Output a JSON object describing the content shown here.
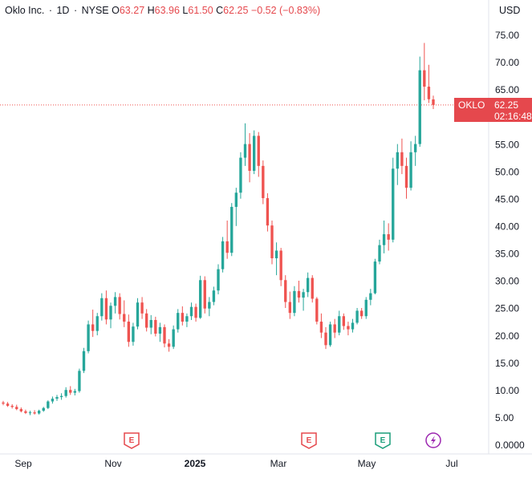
{
  "header": {
    "title": "Oklo Inc.",
    "interval": "1D",
    "exchange": "NYSE",
    "open_label": "O",
    "open": "63.27",
    "high_label": "H",
    "high": "63.96",
    "low_label": "L",
    "low": "61.50",
    "close_label": "C",
    "close": "62.25",
    "change": "−0.52 (−0.83%)"
  },
  "currency": "USD",
  "price_tag": {
    "symbol": "OKLO",
    "price": "62.25",
    "countdown": "02:16:48"
  },
  "events": [
    {
      "type": "earnings",
      "label": "E",
      "color": "#e5484d"
    },
    {
      "type": "earnings",
      "label": "E",
      "color": "#e5484d"
    },
    {
      "type": "earnings",
      "label": "E",
      "color": "#1a9e7a"
    },
    {
      "type": "dividend-lightning",
      "label": "⚡",
      "color": "#9c27b0"
    }
  ],
  "colors": {
    "up": "#26a69a",
    "down": "#ef5350",
    "accent": "#e5484d"
  },
  "chart_data": {
    "type": "candlestick",
    "y_ticks": [
      "75.00",
      "70.00",
      "65.00",
      "60.00",
      "55.00",
      "50.00",
      "45.00",
      "40.00",
      "35.00",
      "30.00",
      "25.00",
      "20.00",
      "15.00",
      "10.00",
      "5.00",
      "0.0000"
    ],
    "x_ticks": [
      {
        "label": "Sep",
        "bold": false
      },
      {
        "label": "Nov",
        "bold": false
      },
      {
        "label": "2025",
        "bold": true
      },
      {
        "label": "Mar",
        "bold": false
      },
      {
        "label": "May",
        "bold": false
      },
      {
        "label": "Jul",
        "bold": false
      }
    ],
    "ylim": [
      0,
      80
    ],
    "last_price": 62.25,
    "series": [
      {
        "name": "OKLO",
        "values": [
          {
            "o": 7.8,
            "h": 8.1,
            "l": 7.3,
            "c": 7.6
          },
          {
            "o": 7.6,
            "h": 7.9,
            "l": 7.0,
            "c": 7.2
          },
          {
            "o": 7.2,
            "h": 7.5,
            "l": 6.7,
            "c": 7.0
          },
          {
            "o": 7.0,
            "h": 7.4,
            "l": 6.4,
            "c": 6.6
          },
          {
            "o": 6.6,
            "h": 6.9,
            "l": 6.0,
            "c": 6.2
          },
          {
            "o": 6.2,
            "h": 6.5,
            "l": 5.7,
            "c": 5.9
          },
          {
            "o": 5.9,
            "h": 6.3,
            "l": 5.5,
            "c": 6.0
          },
          {
            "o": 6.0,
            "h": 6.4,
            "l": 5.6,
            "c": 5.8
          },
          {
            "o": 5.8,
            "h": 6.5,
            "l": 5.6,
            "c": 6.3
          },
          {
            "o": 6.3,
            "h": 7.0,
            "l": 6.1,
            "c": 6.8
          },
          {
            "o": 6.8,
            "h": 8.2,
            "l": 6.6,
            "c": 8.0
          },
          {
            "o": 8.0,
            "h": 8.9,
            "l": 7.6,
            "c": 8.5
          },
          {
            "o": 8.5,
            "h": 9.2,
            "l": 8.1,
            "c": 8.8
          },
          {
            "o": 8.8,
            "h": 9.5,
            "l": 8.3,
            "c": 9.0
          },
          {
            "o": 9.0,
            "h": 10.6,
            "l": 8.7,
            "c": 10.1
          },
          {
            "o": 10.1,
            "h": 10.8,
            "l": 9.2,
            "c": 9.6
          },
          {
            "o": 9.6,
            "h": 10.3,
            "l": 9.1,
            "c": 9.9
          },
          {
            "o": 9.9,
            "h": 14.0,
            "l": 9.6,
            "c": 13.6
          },
          {
            "o": 13.6,
            "h": 17.8,
            "l": 13.2,
            "c": 17.2
          },
          {
            "o": 17.2,
            "h": 22.8,
            "l": 16.8,
            "c": 22.1
          },
          {
            "o": 22.1,
            "h": 24.8,
            "l": 19.8,
            "c": 20.9
          },
          {
            "o": 20.9,
            "h": 24.2,
            "l": 20.1,
            "c": 23.6
          },
          {
            "o": 23.6,
            "h": 27.8,
            "l": 22.8,
            "c": 26.9
          },
          {
            "o": 26.9,
            "h": 28.3,
            "l": 22.1,
            "c": 23.0
          },
          {
            "o": 23.0,
            "h": 26.1,
            "l": 21.4,
            "c": 25.5
          },
          {
            "o": 25.5,
            "h": 28.0,
            "l": 24.1,
            "c": 27.1
          },
          {
            "o": 27.1,
            "h": 27.8,
            "l": 23.0,
            "c": 24.0
          },
          {
            "o": 24.0,
            "h": 26.5,
            "l": 21.6,
            "c": 22.6
          },
          {
            "o": 22.6,
            "h": 23.9,
            "l": 18.0,
            "c": 18.9
          },
          {
            "o": 18.9,
            "h": 22.4,
            "l": 18.2,
            "c": 21.7
          },
          {
            "o": 21.7,
            "h": 26.9,
            "l": 21.2,
            "c": 26.1
          },
          {
            "o": 26.1,
            "h": 27.1,
            "l": 23.1,
            "c": 24.1
          },
          {
            "o": 24.1,
            "h": 24.9,
            "l": 20.8,
            "c": 21.5
          },
          {
            "o": 21.5,
            "h": 23.8,
            "l": 20.3,
            "c": 22.9
          },
          {
            "o": 22.9,
            "h": 23.5,
            "l": 19.9,
            "c": 20.4
          },
          {
            "o": 20.4,
            "h": 22.4,
            "l": 18.9,
            "c": 21.6
          },
          {
            "o": 21.6,
            "h": 22.1,
            "l": 17.9,
            "c": 18.6
          },
          {
            "o": 18.6,
            "h": 19.4,
            "l": 17.1,
            "c": 18.0
          },
          {
            "o": 18.0,
            "h": 21.9,
            "l": 17.6,
            "c": 21.2
          },
          {
            "o": 21.2,
            "h": 24.9,
            "l": 20.6,
            "c": 24.2
          },
          {
            "o": 24.2,
            "h": 25.4,
            "l": 21.9,
            "c": 22.6
          },
          {
            "o": 22.6,
            "h": 24.1,
            "l": 21.6,
            "c": 23.6
          },
          {
            "o": 23.6,
            "h": 26.1,
            "l": 22.9,
            "c": 25.3
          },
          {
            "o": 25.3,
            "h": 25.9,
            "l": 22.6,
            "c": 23.3
          },
          {
            "o": 23.3,
            "h": 31.0,
            "l": 23.1,
            "c": 30.2
          },
          {
            "o": 30.2,
            "h": 30.9,
            "l": 24.1,
            "c": 25.0
          },
          {
            "o": 25.0,
            "h": 27.1,
            "l": 23.6,
            "c": 26.2
          },
          {
            "o": 26.2,
            "h": 29.0,
            "l": 25.6,
            "c": 28.3
          },
          {
            "o": 28.3,
            "h": 33.1,
            "l": 27.6,
            "c": 32.2
          },
          {
            "o": 32.2,
            "h": 38.1,
            "l": 31.6,
            "c": 37.3
          },
          {
            "o": 37.3,
            "h": 41.1,
            "l": 34.1,
            "c": 35.2
          },
          {
            "o": 35.2,
            "h": 44.3,
            "l": 34.6,
            "c": 43.6
          },
          {
            "o": 43.6,
            "h": 47.1,
            "l": 40.1,
            "c": 46.2
          },
          {
            "o": 46.2,
            "h": 53.6,
            "l": 45.1,
            "c": 52.6
          },
          {
            "o": 52.6,
            "h": 58.9,
            "l": 51.1,
            "c": 55.1
          },
          {
            "o": 55.1,
            "h": 57.1,
            "l": 48.1,
            "c": 50.2
          },
          {
            "o": 50.2,
            "h": 57.6,
            "l": 49.6,
            "c": 56.6
          },
          {
            "o": 56.6,
            "h": 57.3,
            "l": 49.1,
            "c": 51.1
          },
          {
            "o": 51.1,
            "h": 52.1,
            "l": 44.1,
            "c": 45.2
          },
          {
            "o": 45.2,
            "h": 46.1,
            "l": 39.1,
            "c": 40.2
          },
          {
            "o": 40.2,
            "h": 41.1,
            "l": 33.1,
            "c": 34.2
          },
          {
            "o": 34.2,
            "h": 37.1,
            "l": 31.1,
            "c": 35.6
          },
          {
            "o": 35.6,
            "h": 36.1,
            "l": 29.1,
            "c": 30.2
          },
          {
            "o": 30.2,
            "h": 31.1,
            "l": 25.1,
            "c": 26.2
          },
          {
            "o": 26.2,
            "h": 28.1,
            "l": 23.1,
            "c": 24.2
          },
          {
            "o": 24.2,
            "h": 29.1,
            "l": 23.6,
            "c": 28.2
          },
          {
            "o": 28.2,
            "h": 30.1,
            "l": 26.1,
            "c": 27.0
          },
          {
            "o": 27.0,
            "h": 28.6,
            "l": 24.6,
            "c": 28.0
          },
          {
            "o": 28.0,
            "h": 31.6,
            "l": 27.1,
            "c": 30.6
          },
          {
            "o": 30.6,
            "h": 31.1,
            "l": 26.1,
            "c": 26.8
          },
          {
            "o": 26.8,
            "h": 27.1,
            "l": 22.1,
            "c": 22.6
          },
          {
            "o": 22.6,
            "h": 24.1,
            "l": 19.6,
            "c": 20.6
          },
          {
            "o": 20.6,
            "h": 21.6,
            "l": 17.6,
            "c": 18.3
          },
          {
            "o": 18.3,
            "h": 22.6,
            "l": 18.0,
            "c": 22.1
          },
          {
            "o": 22.1,
            "h": 23.1,
            "l": 19.6,
            "c": 20.6
          },
          {
            "o": 20.6,
            "h": 24.6,
            "l": 20.1,
            "c": 23.6
          },
          {
            "o": 23.6,
            "h": 24.1,
            "l": 21.1,
            "c": 21.8
          },
          {
            "o": 21.8,
            "h": 22.6,
            "l": 20.1,
            "c": 21.2
          },
          {
            "o": 21.2,
            "h": 23.1,
            "l": 20.6,
            "c": 22.4
          },
          {
            "o": 22.4,
            "h": 25.1,
            "l": 22.1,
            "c": 24.6
          },
          {
            "o": 24.6,
            "h": 25.1,
            "l": 23.1,
            "c": 23.6
          },
          {
            "o": 23.6,
            "h": 27.1,
            "l": 23.1,
            "c": 26.6
          },
          {
            "o": 26.6,
            "h": 28.6,
            "l": 25.6,
            "c": 27.8
          },
          {
            "o": 27.8,
            "h": 34.1,
            "l": 27.6,
            "c": 33.6
          },
          {
            "o": 33.6,
            "h": 37.6,
            "l": 33.1,
            "c": 36.6
          },
          {
            "o": 36.6,
            "h": 41.1,
            "l": 35.1,
            "c": 38.6
          },
          {
            "o": 38.6,
            "h": 40.6,
            "l": 35.6,
            "c": 37.6
          },
          {
            "o": 37.6,
            "h": 52.6,
            "l": 37.1,
            "c": 50.6
          },
          {
            "o": 50.6,
            "h": 55.1,
            "l": 47.6,
            "c": 53.6
          },
          {
            "o": 53.6,
            "h": 56.1,
            "l": 49.6,
            "c": 51.1
          },
          {
            "o": 51.1,
            "h": 52.6,
            "l": 45.1,
            "c": 47.1
          },
          {
            "o": 47.1,
            "h": 55.6,
            "l": 46.6,
            "c": 53.6
          },
          {
            "o": 53.6,
            "h": 56.6,
            "l": 51.1,
            "c": 55.1
          },
          {
            "o": 55.1,
            "h": 71.1,
            "l": 54.6,
            "c": 68.6
          },
          {
            "o": 68.6,
            "h": 73.6,
            "l": 63.1,
            "c": 65.6
          },
          {
            "o": 65.6,
            "h": 69.6,
            "l": 62.6,
            "c": 63.3
          },
          {
            "o": 63.27,
            "h": 63.96,
            "l": 61.5,
            "c": 62.25
          }
        ]
      }
    ]
  }
}
